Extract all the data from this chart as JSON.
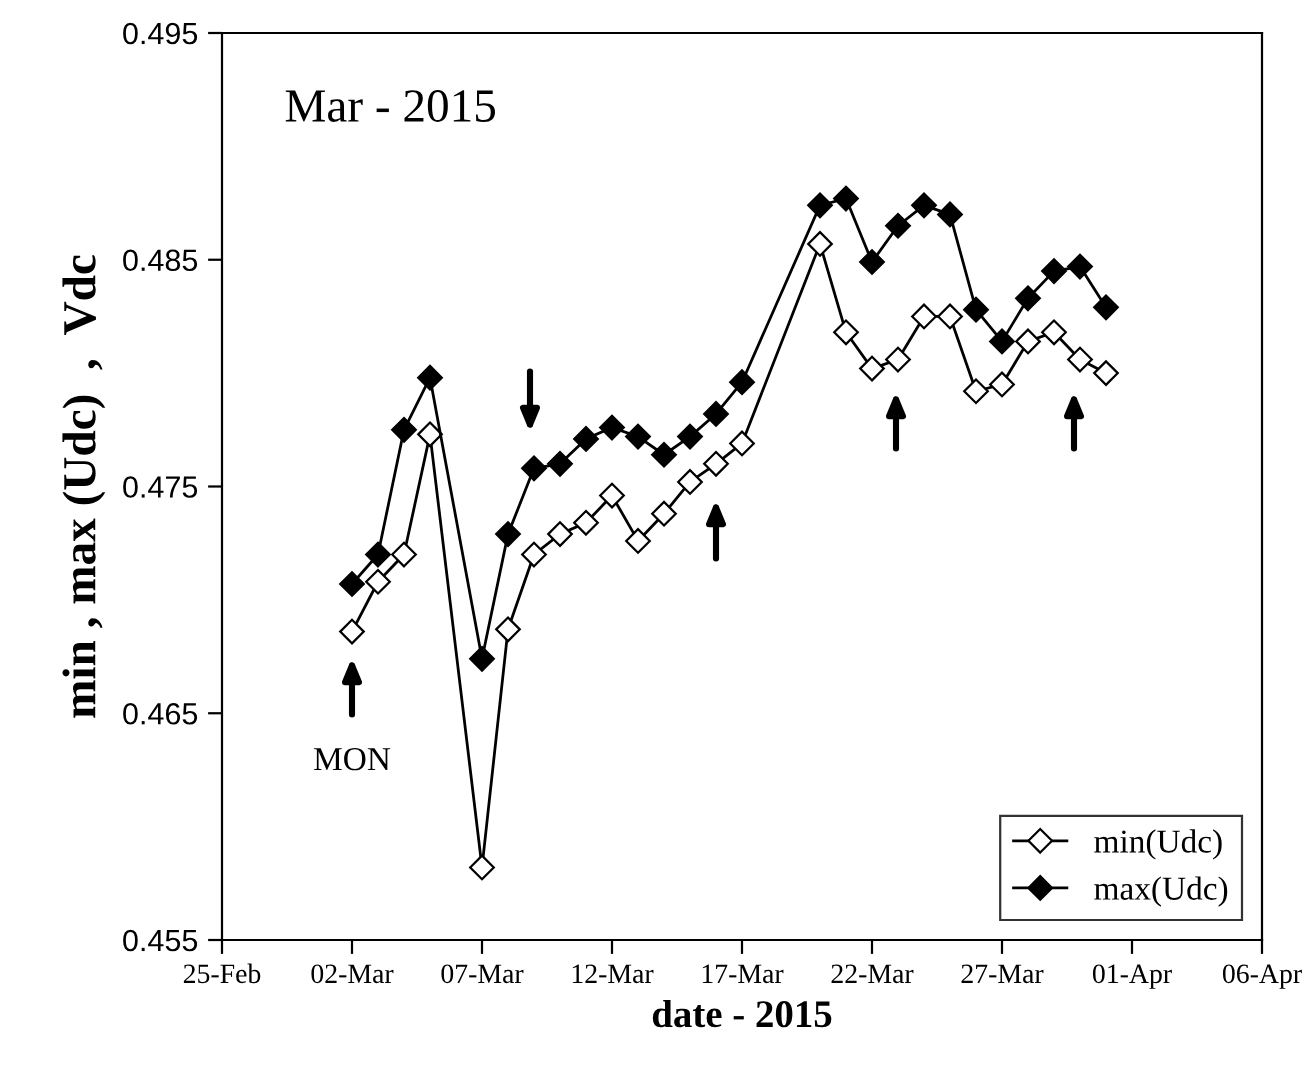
{
  "chart_data": {
    "type": "line",
    "xlabel": "date - 2015",
    "ylabel": "min , max (Udc)  ,  Vdc",
    "x": [
      "2015-03-02",
      "2015-03-03",
      "2015-03-04",
      "2015-03-05",
      "2015-03-07",
      "2015-03-08",
      "2015-03-09",
      "2015-03-10",
      "2015-03-11",
      "2015-03-12",
      "2015-03-13",
      "2015-03-14",
      "2015-03-15",
      "2015-03-16",
      "2015-03-17",
      "2015-03-20",
      "2015-03-21",
      "2015-03-22",
      "2015-03-23",
      "2015-03-24",
      "2015-03-25",
      "2015-03-26",
      "2015-03-27",
      "2015-03-28",
      "2015-03-29",
      "2015-03-30",
      "2015-03-31"
    ],
    "series": [
      {
        "name": "min(Udc)",
        "color": "#000000",
        "values": [
          0.4686,
          0.4708,
          0.472,
          0.4773,
          0.4582,
          0.4687,
          0.472,
          0.4729,
          0.4734,
          0.4746,
          0.4726,
          0.4738,
          0.4752,
          0.476,
          0.4769,
          0.4857,
          0.4818,
          0.4802,
          0.4806,
          0.4825,
          0.4825,
          0.4792,
          0.4795,
          0.4814,
          0.4818,
          0.4806,
          0.48
        ]
      },
      {
        "name": "max(Udc)",
        "color": "#000000",
        "values": [
          0.4707,
          0.472,
          0.4775,
          0.4798,
          0.4674,
          0.4729,
          0.4758,
          0.476,
          0.4771,
          0.4776,
          0.4772,
          0.4764,
          0.4772,
          0.4782,
          0.4796,
          0.4874,
          0.4877,
          0.4849,
          0.4865,
          0.4874,
          0.487,
          0.4828,
          0.4814,
          0.4833,
          0.4845,
          0.4847,
          0.4829
        ]
      }
    ],
    "marker": "diamond",
    "line_style": "solid",
    "legend": "bottom right",
    "grid": false,
    "xlim": [
      "2015-02-25",
      "2015-04-06"
    ],
    "xticks": [
      {
        "value": "2015-02-25",
        "label": "25-Feb"
      },
      {
        "value": "2015-03-02",
        "label": "02-Mar"
      },
      {
        "value": "2015-03-07",
        "label": "07-Mar"
      },
      {
        "value": "2015-03-12",
        "label": "12-Mar"
      },
      {
        "value": "2015-03-17",
        "label": "17-Mar"
      },
      {
        "value": "2015-03-22",
        "label": "22-Mar"
      },
      {
        "value": "2015-03-27",
        "label": "27-Mar"
      },
      {
        "value": "2015-04-01",
        "label": "01-Apr"
      },
      {
        "value": "2015-04-06",
        "label": "06-Apr"
      }
    ],
    "ylim": [
      0.455,
      0.495
    ],
    "yticks": [
      0.455,
      0.465,
      0.475,
      0.485,
      0.495
    ],
    "annotations": [
      "Mar - 2015",
      "MON"
    ]
  }
}
